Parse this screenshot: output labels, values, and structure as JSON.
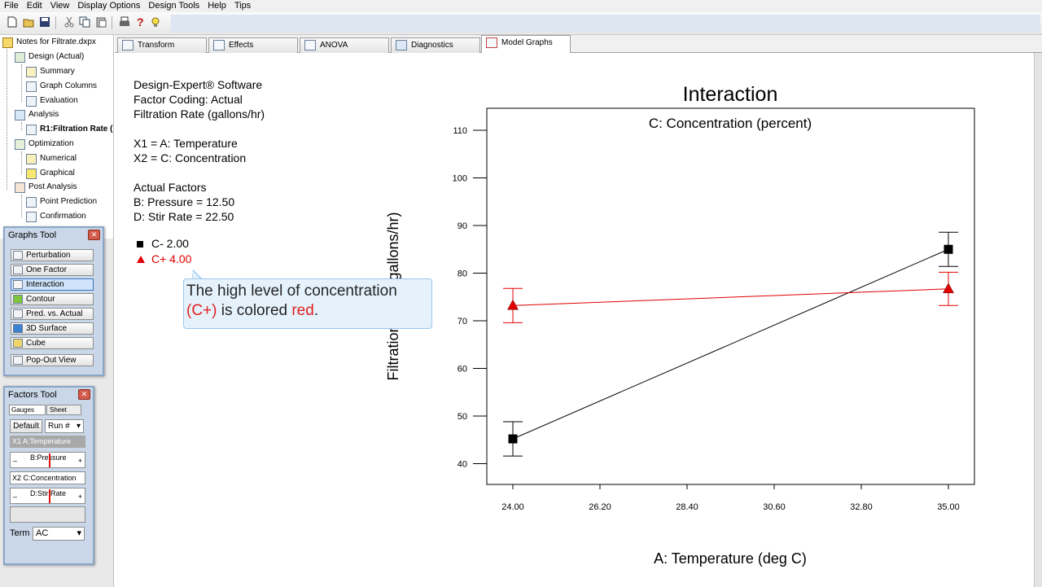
{
  "menu": [
    "File",
    "Edit",
    "View",
    "Display Options",
    "Design Tools",
    "Help",
    "Tips"
  ],
  "tree": {
    "root": "Notes for Filtrate.dxpx",
    "items": [
      {
        "label": "Design (Actual)"
      },
      {
        "label": "Summary"
      },
      {
        "label": "Graph Columns"
      },
      {
        "label": "Evaluation"
      },
      {
        "label": "Analysis"
      },
      {
        "label": "R1:Filtration Rate ("
      },
      {
        "label": "Optimization"
      },
      {
        "label": "Numerical"
      },
      {
        "label": "Graphical"
      },
      {
        "label": "Post Analysis"
      },
      {
        "label": "Point Prediction"
      },
      {
        "label": "Confirmation"
      }
    ]
  },
  "graphs_tool": {
    "title": "Graphs Tool",
    "buttons": [
      "Perturbation",
      "One Factor",
      "Interaction",
      "Contour",
      "Pred. vs. Actual",
      "3D Surface",
      "Cube",
      "Pop-Out View"
    ],
    "selected": "Interaction"
  },
  "factors_tool": {
    "title": "Factors Tool",
    "tab_gauges": "Gauges",
    "tab_sheet": "Sheet",
    "default_btn": "Default",
    "run_select": "Run #",
    "x1": "X1 A:Temperature",
    "pressure": "B:Pressure",
    "x2": "X2 C:Concentration",
    "stir": "D:Stir Rate",
    "minus": "–",
    "plus": "+",
    "term_label": "Term",
    "term_value": "AC"
  },
  "tabs": [
    "Transform",
    "Effects",
    "ANOVA",
    "Diagnostics",
    "Model Graphs"
  ],
  "active_tab": "Model Graphs",
  "info": {
    "line1": "Design-Expert® Software",
    "line2": "Factor Coding: Actual",
    "line3": "Filtration Rate (gallons/hr)",
    "x1": "X1 = A: Temperature",
    "x2": "X2 = C: Concentration",
    "actual_factors": "Actual Factors",
    "b": "B: Pressure = 12.50",
    "d": "D: Stir Rate = 22.50"
  },
  "legend": {
    "low": "C- 2.00",
    "high": "C+ 4.00",
    "low_color": "#000000",
    "high_color": "#e00000"
  },
  "callout": {
    "line1": "The high level of concentration",
    "line2_red": "(C+)",
    "line2_mid": " is colored ",
    "line2_red2": "red",
    "line2_end": "."
  },
  "chart_data": {
    "type": "line",
    "title": "Interaction",
    "subtitle": "C: Concentration (percent)",
    "xlabel": "A: Temperature (deg C)",
    "ylabel": "Filtration Rate (gallons/hr)",
    "xlim": [
      24.0,
      35.0
    ],
    "ylim": [
      35,
      115
    ],
    "xticks": [
      "24.00",
      "26.20",
      "28.40",
      "30.60",
      "32.80",
      "35.00"
    ],
    "xtick_values": [
      24.0,
      26.2,
      28.4,
      30.6,
      32.8,
      35.0
    ],
    "yticks": [
      40,
      50,
      60,
      70,
      80,
      90,
      100,
      110
    ],
    "series": [
      {
        "name": "C- 2.00",
        "color": "#000000",
        "marker": "square",
        "x": [
          24.0,
          35.0
        ],
        "y": [
          45.2,
          85.0
        ],
        "err_low": [
          41.6,
          81.4
        ],
        "err_high": [
          48.8,
          88.6
        ]
      },
      {
        "name": "C+ 4.00",
        "color": "#e00000",
        "marker": "triangle",
        "x": [
          24.0,
          35.0
        ],
        "y": [
          73.2,
          76.7
        ],
        "err_low": [
          69.6,
          73.2
        ],
        "err_high": [
          76.8,
          80.2
        ]
      }
    ]
  }
}
